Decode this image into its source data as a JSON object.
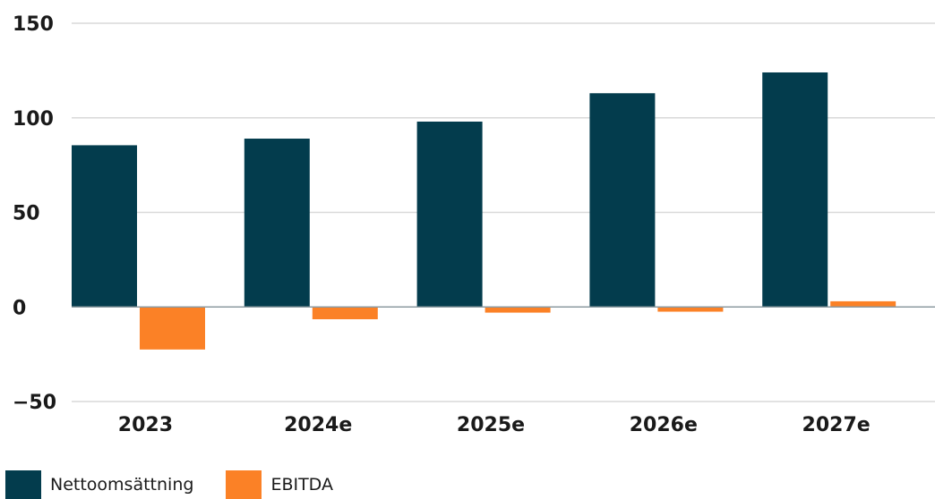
{
  "chart_data": {
    "type": "bar",
    "categories": [
      "2023",
      "2024e",
      "2025e",
      "2026e",
      "2027e"
    ],
    "series": [
      {
        "name": "Nettoomsättning",
        "color": "#033c4d",
        "values": [
          85.5,
          89,
          98,
          113,
          124
        ]
      },
      {
        "name": "EBITDA",
        "color": "#fb8126",
        "values": [
          -22.5,
          -6.5,
          -3,
          -2.5,
          3
        ]
      }
    ],
    "ylim": [
      -50,
      150
    ],
    "yticks": [
      150,
      100,
      50,
      0,
      -50
    ],
    "grid": true,
    "legend_position": "bottom-left",
    "title": "",
    "xlabel": "",
    "ylabel": ""
  }
}
